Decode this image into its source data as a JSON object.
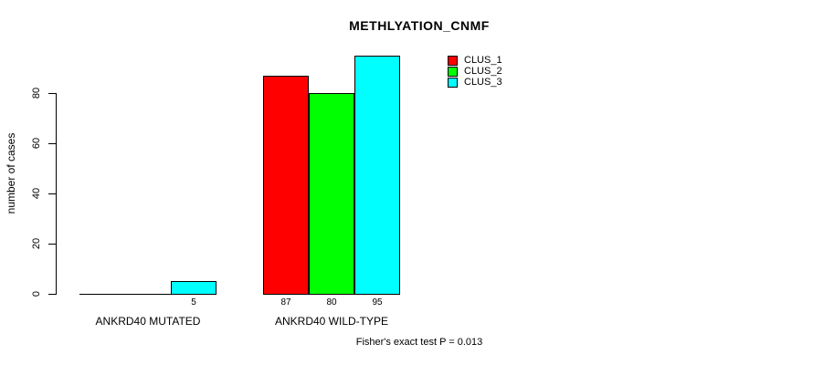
{
  "chart_data": {
    "type": "bar",
    "title": "METHLYATION_CNMF",
    "ylabel": "number of cases",
    "xlabel": "",
    "ylim": [
      0,
      95
    ],
    "yticks": [
      0,
      20,
      40,
      60,
      80
    ],
    "categories": [
      "ANKRD40 MUTATED",
      "ANKRD40 WILD-TYPE"
    ],
    "series": [
      {
        "name": "CLUS_1",
        "color": "#FF0000",
        "values": [
          0,
          87
        ]
      },
      {
        "name": "CLUS_2",
        "color": "#00FF00",
        "values": [
          0,
          80
        ]
      },
      {
        "name": "CLUS_3",
        "color": "#00FFFF",
        "values": [
          5,
          95
        ]
      }
    ],
    "bar_value_labels": [
      "5",
      "87",
      "80",
      "95"
    ],
    "show_zero_value_labels": false,
    "annotation": "Fisher's exact test P = 0.013",
    "legend_position": "top-right",
    "grid": false,
    "background": "#FFFFFF",
    "axis_color": "#000000"
  }
}
